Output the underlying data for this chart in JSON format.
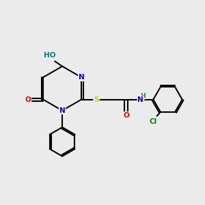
{
  "background_color": "#ebebeb",
  "atom_colors": {
    "N": "#0000ff",
    "O": "#ff0000",
    "S": "#cccc00",
    "Cl": "#008000",
    "H": "#008080",
    "C": "#000000"
  }
}
